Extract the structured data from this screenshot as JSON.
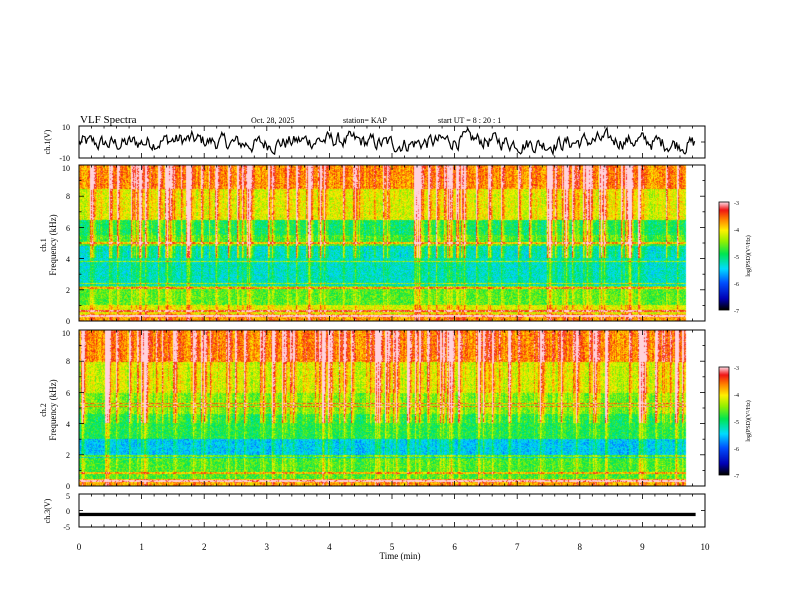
{
  "header": {
    "title": "VLF Spectra",
    "date": "Oct. 28, 2025",
    "station": "station= KAP",
    "start": "start  UT  =  8 : 20 : 1"
  },
  "chart_data": [
    {
      "type": "line",
      "name": "ch1-waveform",
      "ylabel": "ch.1(V)",
      "ylim": [
        -10,
        10
      ],
      "y_ticks": [
        "10",
        "-10"
      ],
      "xlim": [
        0,
        10
      ],
      "x_extent": 9.85,
      "mean": 0,
      "amplitude": 5
    },
    {
      "type": "heatmap",
      "name": "ch1-spectrogram",
      "ylabel": "Frequency (kHz)",
      "ylabel_channel": "ch.1",
      "ylim": [
        0,
        10
      ],
      "y_ticks": [
        "0",
        "2",
        "4",
        "6",
        "8",
        "10"
      ],
      "xlim": [
        0,
        10
      ],
      "x_extent": 9.85,
      "colorbar": {
        "label": "log(PSD)(V²/Hz)",
        "range": [
          -7,
          -3
        ],
        "ticks": [
          "-3",
          "-4",
          "-5",
          "-6",
          "-7"
        ]
      }
    },
    {
      "type": "heatmap",
      "name": "ch2-spectrogram",
      "ylabel": "Frequency (kHz)",
      "ylabel_channel": "ch.2",
      "ylim": [
        0,
        10
      ],
      "y_ticks": [
        "0",
        "2",
        "4",
        "6",
        "8",
        "10"
      ],
      "xlim": [
        0,
        10
      ],
      "x_extent": 9.85,
      "colorbar": {
        "label": "log(PSD)(V²/Hz)",
        "range": [
          -7,
          -3
        ],
        "ticks": [
          "-3",
          "-4",
          "-5",
          "-6",
          "-7"
        ]
      }
    },
    {
      "type": "line",
      "name": "ch3-waveform",
      "ylabel": "ch.3(V)",
      "ylim": [
        -5,
        5
      ],
      "y_ticks": [
        "5",
        "0",
        "-5"
      ],
      "xlim": [
        0,
        10
      ],
      "x_extent": 9.85,
      "mean": -1.2,
      "amplitude": 0.25
    }
  ],
  "x_axis": {
    "label": "Time (min)",
    "ticks": [
      "0",
      "1",
      "2",
      "3",
      "4",
      "5",
      "6",
      "7",
      "8",
      "9",
      "10"
    ]
  }
}
